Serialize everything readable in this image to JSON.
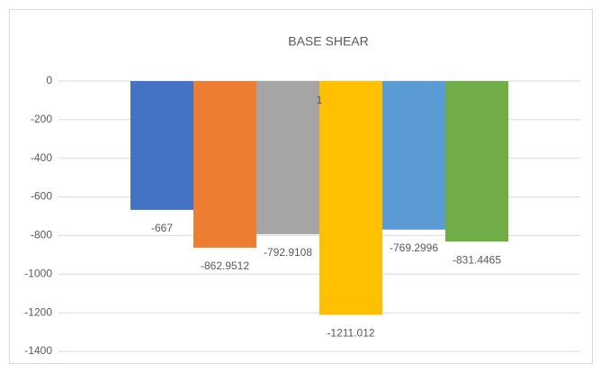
{
  "chart_data": {
    "type": "bar",
    "title": "BASE SHEAR",
    "categories": [
      "1"
    ],
    "series": [
      {
        "color": "#4472c4",
        "values": [
          -667
        ]
      },
      {
        "color": "#ed7d31",
        "values": [
          -862.9512
        ]
      },
      {
        "color": "#a5a5a5",
        "values": [
          -792.9108
        ]
      },
      {
        "color": "#ffc000",
        "values": [
          -1211.012
        ]
      },
      {
        "color": "#5b9bd5",
        "values": [
          -769.2996
        ]
      },
      {
        "color": "#70ad47",
        "values": [
          -831.4465
        ]
      }
    ],
    "ylim": [
      -1400,
      0
    ],
    "yticks": [
      -1400,
      -1200,
      -1000,
      -800,
      -600,
      -400,
      -200,
      0
    ],
    "grid": true
  }
}
